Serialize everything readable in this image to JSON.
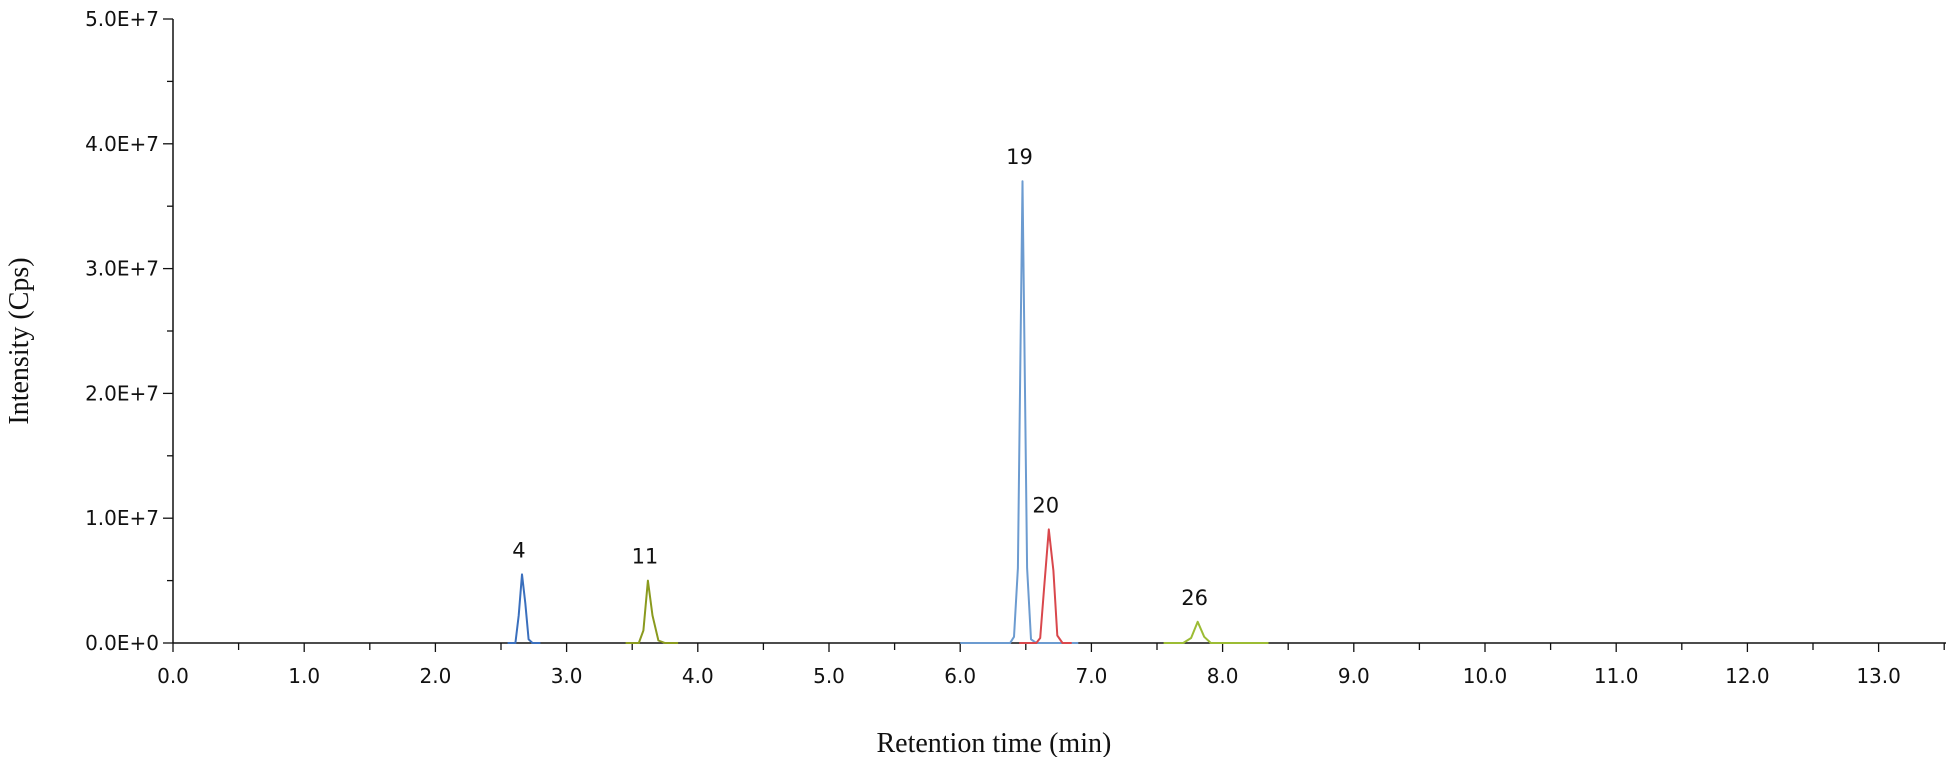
{
  "chart_data": {
    "type": "line",
    "title": "",
    "xlabel": "Retention time (min)",
    "ylabel": "Intensity (Cps)",
    "xlim": [
      0,
      13.5
    ],
    "ylim": [
      0,
      50000000
    ],
    "x_ticks": [
      "0.0",
      "1.0",
      "2.0",
      "3.0",
      "4.0",
      "5.0",
      "6.0",
      "7.0",
      "8.0",
      "9.0",
      "10.0",
      "11.0",
      "12.0",
      "13.0"
    ],
    "y_ticks": [
      "0.0E+0",
      "1.0E+7",
      "2.0E+7",
      "3.0E+7",
      "4.0E+7",
      "5.0E+7"
    ],
    "x_minor_step": 0.5,
    "y_minor_step": 5000000,
    "grid": false,
    "legend": "none",
    "series": [
      {
        "label": "4",
        "color": "#3a6fbd",
        "points": [
          [
            2.55,
            0
          ],
          [
            2.61,
            0
          ],
          [
            2.635,
            2200000
          ],
          [
            2.66,
            5500000
          ],
          [
            2.685,
            3200000
          ],
          [
            2.71,
            300000
          ],
          [
            2.74,
            0
          ],
          [
            2.8,
            0
          ]
        ]
      },
      {
        "label": "11",
        "color": "#8a9a1e",
        "points": [
          [
            3.45,
            0
          ],
          [
            3.55,
            0
          ],
          [
            3.585,
            1000000
          ],
          [
            3.62,
            5000000
          ],
          [
            3.655,
            2200000
          ],
          [
            3.7,
            200000
          ],
          [
            3.75,
            0
          ],
          [
            3.85,
            0
          ]
        ]
      },
      {
        "label": "19",
        "color": "#6c9bd0",
        "points": [
          [
            6.0,
            0
          ],
          [
            6.38,
            0
          ],
          [
            6.41,
            500000
          ],
          [
            6.44,
            6000000
          ],
          [
            6.475,
            37000000
          ],
          [
            6.51,
            6000000
          ],
          [
            6.54,
            300000
          ],
          [
            6.58,
            0
          ],
          [
            6.9,
            0
          ]
        ]
      },
      {
        "label": "20",
        "color": "#d9474c",
        "points": [
          [
            6.45,
            0
          ],
          [
            6.58,
            0
          ],
          [
            6.61,
            400000
          ],
          [
            6.64,
            4500000
          ],
          [
            6.675,
            9100000
          ],
          [
            6.71,
            5800000
          ],
          [
            6.74,
            600000
          ],
          [
            6.78,
            0
          ],
          [
            6.85,
            0
          ]
        ]
      },
      {
        "label": "26",
        "color": "#9cbc34",
        "points": [
          [
            7.55,
            0
          ],
          [
            7.7,
            0
          ],
          [
            7.76,
            400000
          ],
          [
            7.81,
            1700000
          ],
          [
            7.86,
            500000
          ],
          [
            7.91,
            0
          ],
          [
            8.1,
            0
          ],
          [
            8.35,
            0
          ]
        ]
      }
    ]
  }
}
